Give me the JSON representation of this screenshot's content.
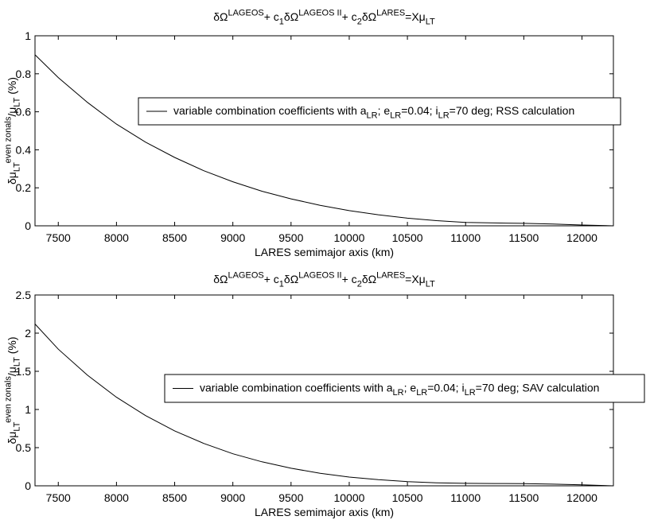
{
  "chart_data": [
    {
      "type": "line",
      "title": {
        "parts": [
          {
            "t": "δΩ"
          },
          {
            "t": "LAGEOS",
            "s": "sup"
          },
          {
            "t": "+ c"
          },
          {
            "t": "1",
            "s": "sub"
          },
          {
            "t": "δΩ"
          },
          {
            "t": "LAGEOS II",
            "s": "sup"
          },
          {
            "t": "+ c"
          },
          {
            "t": "2",
            "s": "sub"
          },
          {
            "t": "δΩ"
          },
          {
            "t": "LARES",
            "s": "sup"
          },
          {
            "t": "=Xμ"
          },
          {
            "t": "LT",
            "s": "sub"
          }
        ]
      },
      "xlabel": "LARES semimajor axis (km)",
      "ylabel": {
        "parts": [
          {
            "t": "δμ"
          },
          {
            "t": "LT",
            "s": "sub"
          },
          {
            "t": "even zonals",
            "s": "sup"
          },
          {
            "t": "/μ"
          },
          {
            "t": "LT",
            "s": "sub"
          },
          {
            "t": " (%)"
          }
        ]
      },
      "xlim": [
        7300,
        12270
      ],
      "ylim": [
        0,
        1
      ],
      "xticks": [
        7500,
        8000,
        8500,
        9000,
        9500,
        10000,
        10500,
        11000,
        11500,
        12000
      ],
      "yticks": [
        0,
        0.2,
        0.4,
        0.6,
        0.8,
        1
      ],
      "yticklabels": [
        "0",
        "0.2",
        "0.4",
        "0.6",
        "0.8",
        "1"
      ],
      "grid": false,
      "legend_position": "right",
      "series": [
        {
          "name": {
            "parts": [
              {
                "t": "variable combination coefficients with a"
              },
              {
                "t": "LR",
                "s": "sub"
              },
              {
                "t": "; e"
              },
              {
                "t": "LR",
                "s": "sub"
              },
              {
                "t": "=0.04; i"
              },
              {
                "t": "LR",
                "s": "sub"
              },
              {
                "t": "=70 deg; RSS calculation"
              }
            ]
          },
          "x": [
            7300,
            7500,
            7750,
            8000,
            8250,
            8500,
            8750,
            9000,
            9250,
            9500,
            9750,
            10000,
            10250,
            10500,
            10750,
            11000,
            11250,
            11500,
            11750,
            12000,
            12270
          ],
          "y": [
            0.9,
            0.78,
            0.65,
            0.535,
            0.44,
            0.36,
            0.29,
            0.232,
            0.182,
            0.142,
            0.108,
            0.08,
            0.058,
            0.04,
            0.027,
            0.018,
            0.015,
            0.013,
            0.009,
            0.004,
            0.0
          ]
        }
      ]
    },
    {
      "type": "line",
      "title": {
        "parts": [
          {
            "t": "δΩ"
          },
          {
            "t": "LAGEOS",
            "s": "sup"
          },
          {
            "t": "+ c"
          },
          {
            "t": "1",
            "s": "sub"
          },
          {
            "t": "δΩ"
          },
          {
            "t": "LAGEOS II",
            "s": "sup"
          },
          {
            "t": "+ c"
          },
          {
            "t": "2",
            "s": "sub"
          },
          {
            "t": "δΩ"
          },
          {
            "t": "LARES",
            "s": "sup"
          },
          {
            "t": "=Xμ"
          },
          {
            "t": "LT",
            "s": "sub"
          }
        ]
      },
      "xlabel": "LARES semimajor axis (km)",
      "ylabel": {
        "parts": [
          {
            "t": "δμ"
          },
          {
            "t": "LT",
            "s": "sub"
          },
          {
            "t": "even zonals",
            "s": "sup"
          },
          {
            "t": "/μ"
          },
          {
            "t": "LT",
            "s": "sub"
          },
          {
            "t": " (%)"
          }
        ]
      },
      "xlim": [
        7300,
        12270
      ],
      "ylim": [
        0,
        2.5
      ],
      "xticks": [
        7500,
        8000,
        8500,
        9000,
        9500,
        10000,
        10500,
        11000,
        11500,
        12000
      ],
      "yticks": [
        0,
        0.5,
        1,
        1.5,
        2,
        2.5
      ],
      "yticklabels": [
        "0",
        "0.5",
        "1",
        "1.5",
        "2",
        "2.5"
      ],
      "grid": false,
      "legend_position": "right",
      "series": [
        {
          "name": {
            "parts": [
              {
                "t": "variable combination coefficients with a"
              },
              {
                "t": "LR",
                "s": "sub"
              },
              {
                "t": "; e"
              },
              {
                "t": "LR",
                "s": "sub"
              },
              {
                "t": "=0.04; i"
              },
              {
                "t": "LR",
                "s": "sub"
              },
              {
                "t": "=70 deg; SAV calculation"
              }
            ]
          },
          "x": [
            7300,
            7500,
            7750,
            8000,
            8250,
            8500,
            8750,
            9000,
            9250,
            9500,
            9750,
            10000,
            10250,
            10500,
            10750,
            11000,
            11250,
            11500,
            11750,
            12000,
            12270
          ],
          "y": [
            2.12,
            1.79,
            1.45,
            1.16,
            0.92,
            0.72,
            0.555,
            0.42,
            0.315,
            0.23,
            0.165,
            0.115,
            0.08,
            0.055,
            0.04,
            0.032,
            0.03,
            0.028,
            0.022,
            0.012,
            0.0
          ]
        }
      ]
    }
  ]
}
